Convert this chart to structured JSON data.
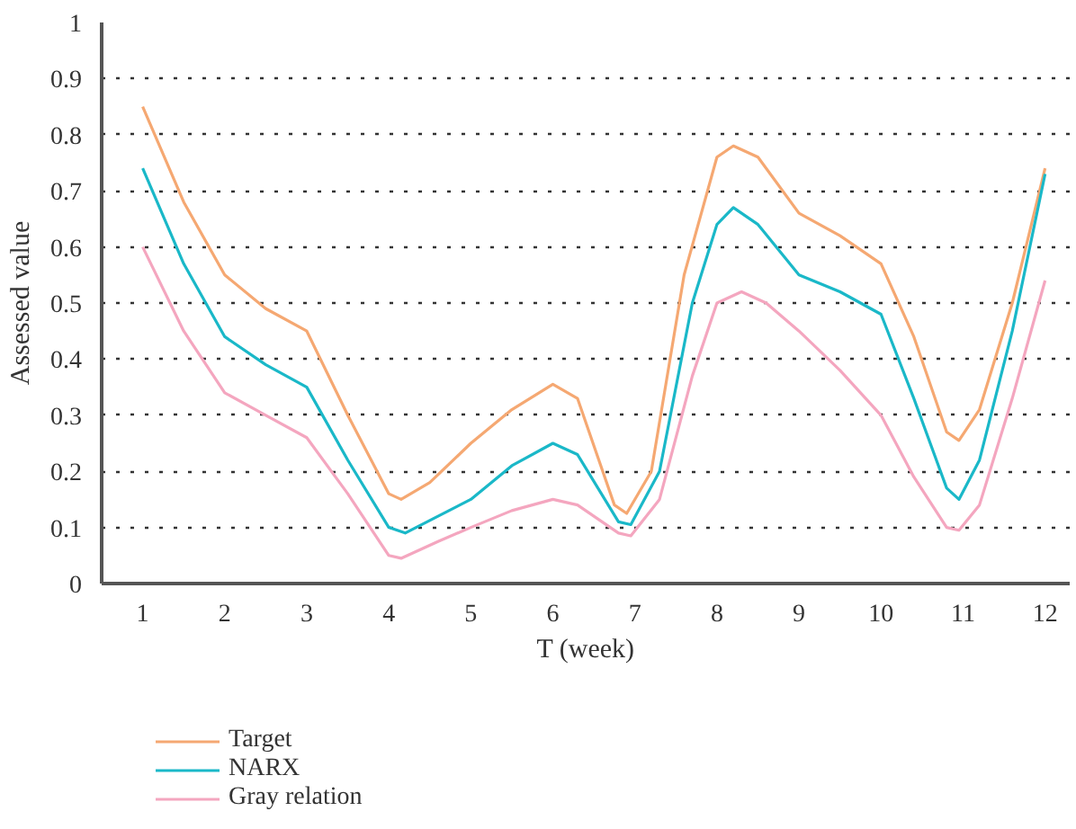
{
  "chart_data": {
    "type": "line",
    "xlabel": "T (week)",
    "ylabel": "Assessed value",
    "xlim": [
      0.5,
      12.3
    ],
    "xticks": [
      1,
      2,
      3,
      4,
      5,
      6,
      7,
      8,
      9,
      10,
      11,
      12
    ],
    "ylim": [
      0,
      1
    ],
    "yticks": [
      0,
      0.1,
      0.2,
      0.3,
      0.4,
      0.5,
      0.6,
      0.7,
      0.8,
      0.9,
      1
    ],
    "grid": "y",
    "legend": "bottom",
    "line_style": "solid",
    "series": [
      {
        "name": "Target",
        "color": "#f5a872",
        "x": [
          1,
          1.5,
          2,
          2.5,
          3,
          3.5,
          4,
          4.15,
          4.5,
          5,
          5.5,
          6,
          6.3,
          6.75,
          6.9,
          7.2,
          7.6,
          8,
          8.2,
          8.5,
          9,
          9.5,
          10,
          10.4,
          10.8,
          10.95,
          11.2,
          11.6,
          12
        ],
        "values": [
          0.85,
          0.68,
          0.55,
          0.49,
          0.45,
          0.3,
          0.16,
          0.15,
          0.18,
          0.25,
          0.31,
          0.355,
          0.33,
          0.14,
          0.125,
          0.2,
          0.55,
          0.76,
          0.78,
          0.76,
          0.66,
          0.62,
          0.57,
          0.44,
          0.27,
          0.255,
          0.31,
          0.5,
          0.74
        ]
      },
      {
        "name": "NARX",
        "color": "#1ab8c8",
        "x": [
          1,
          1.5,
          2,
          2.5,
          3,
          3.5,
          4,
          4.2,
          4.6,
          5,
          5.5,
          6,
          6.3,
          6.8,
          6.95,
          7.3,
          7.7,
          8,
          8.2,
          8.5,
          9,
          9.5,
          10,
          10.4,
          10.8,
          10.95,
          11.2,
          11.6,
          12
        ],
        "values": [
          0.74,
          0.57,
          0.44,
          0.39,
          0.35,
          0.22,
          0.1,
          0.09,
          0.12,
          0.15,
          0.21,
          0.25,
          0.23,
          0.11,
          0.105,
          0.2,
          0.5,
          0.64,
          0.67,
          0.64,
          0.55,
          0.52,
          0.48,
          0.33,
          0.17,
          0.15,
          0.22,
          0.45,
          0.73
        ]
      },
      {
        "name": "Gray relation",
        "color": "#f4a6bf",
        "x": [
          1,
          1.5,
          2,
          2.5,
          3,
          3.5,
          4,
          4.15,
          4.6,
          5,
          5.5,
          6,
          6.3,
          6.8,
          6.95,
          7.3,
          7.7,
          8,
          8.3,
          8.6,
          9,
          9.5,
          10,
          10.4,
          10.8,
          10.95,
          11.2,
          11.6,
          12
        ],
        "values": [
          0.6,
          0.45,
          0.34,
          0.3,
          0.26,
          0.16,
          0.05,
          0.045,
          0.075,
          0.1,
          0.13,
          0.15,
          0.14,
          0.09,
          0.085,
          0.15,
          0.37,
          0.5,
          0.52,
          0.5,
          0.45,
          0.38,
          0.3,
          0.19,
          0.1,
          0.095,
          0.14,
          0.33,
          0.54
        ]
      }
    ]
  }
}
